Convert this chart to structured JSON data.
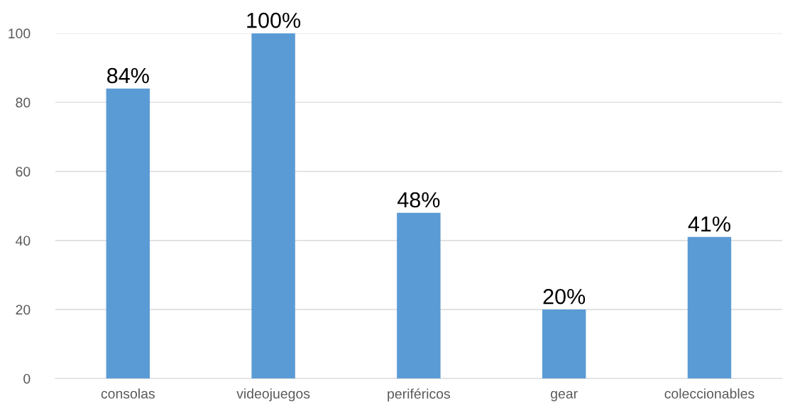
{
  "chart_data": {
    "type": "bar",
    "categories": [
      "consolas",
      "videojuegos",
      "periféricos",
      "gear",
      "coleccionables"
    ],
    "values": [
      84,
      100,
      48,
      20,
      41
    ],
    "value_labels": [
      "84%",
      "100%",
      "48%",
      "20%",
      "41%"
    ],
    "color": "#5b9bd5",
    "ylim": [
      0,
      100
    ],
    "yticks": [
      0,
      20,
      40,
      60,
      80,
      100
    ],
    "grid": "y"
  }
}
